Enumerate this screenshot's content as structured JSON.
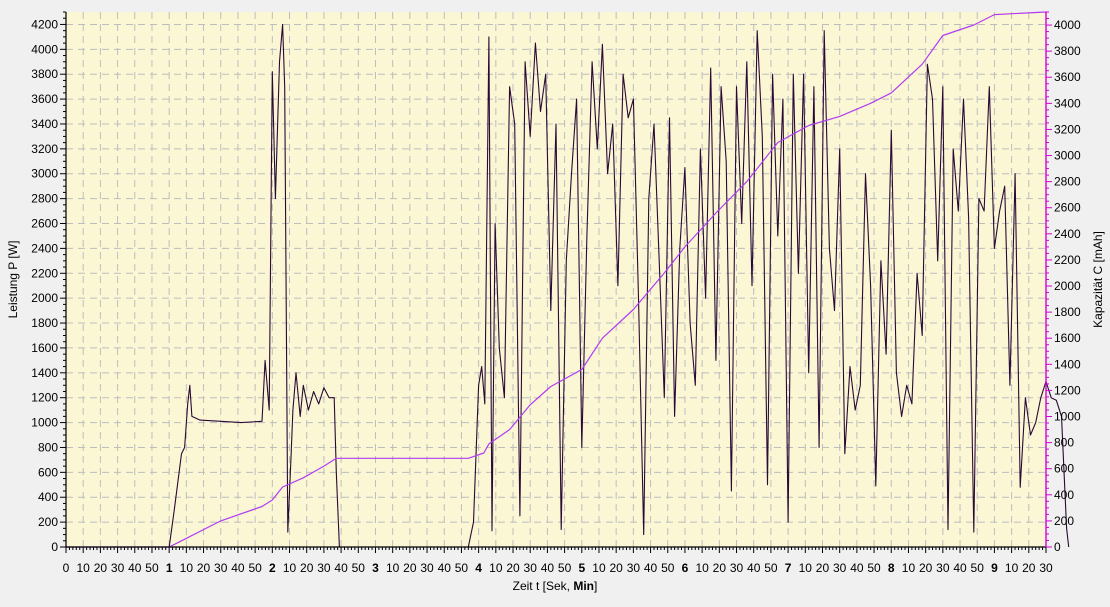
{
  "chart_data": {
    "type": "line",
    "xlabel": "Zeit t [Sek, Min]",
    "xlabel_parts": [
      "Zeit  t  [Sek, ",
      "Min",
      "]"
    ],
    "ylabel_left": "Leistung  P  [W]",
    "ylabel_right": "Kapazität  C  [mAh]",
    "xlim": [
      0,
      9.5
    ],
    "ylim_left": [
      0,
      4300
    ],
    "ylim_right": [
      0,
      4100
    ],
    "grid": true,
    "left_ticks": [
      0,
      200,
      400,
      600,
      800,
      1000,
      1200,
      1400,
      1600,
      1800,
      2000,
      2200,
      2400,
      2600,
      2800,
      3000,
      3200,
      3400,
      3600,
      3800,
      4000,
      4200
    ],
    "right_ticks": [
      0,
      200,
      400,
      600,
      800,
      1000,
      1200,
      1400,
      1600,
      1800,
      2000,
      2200,
      2400,
      2600,
      2800,
      3000,
      3200,
      3400,
      3600,
      3800,
      4000
    ],
    "x_tick_labels": [
      "0",
      "10",
      "20",
      "30",
      "40",
      "50",
      "1",
      "10",
      "20",
      "30",
      "40",
      "50",
      "2",
      "10",
      "20",
      "30",
      "40",
      "50",
      "3",
      "10",
      "20",
      "30",
      "40",
      "50",
      "4",
      "10",
      "20",
      "30",
      "40",
      "50",
      "5",
      "10",
      "20",
      "30",
      "40",
      "50",
      "6",
      "10",
      "20",
      "30",
      "40",
      "50",
      "7",
      "10",
      "20",
      "30",
      "40",
      "50",
      "8",
      "10",
      "20",
      "30",
      "40",
      "50",
      "9",
      "10",
      "20",
      "30"
    ],
    "colors": {
      "power": "#2a0a35",
      "capacity": "#b23cf2",
      "background": "#fbf7d5",
      "grid": "#bdbdbd",
      "axis_right": "#d400d4"
    },
    "series": [
      {
        "axis": "left",
        "values": [
          [
            0,
            0
          ],
          [
            0.9,
            0
          ],
          [
            1.0,
            0
          ],
          [
            1.05,
            300
          ],
          [
            1.12,
            750
          ],
          [
            1.15,
            800
          ],
          [
            1.18,
            1150
          ],
          [
            1.2,
            1300
          ],
          [
            1.22,
            1050
          ],
          [
            1.3,
            1020
          ],
          [
            1.5,
            1010
          ],
          [
            1.7,
            1000
          ],
          [
            1.9,
            1010
          ],
          [
            1.93,
            1500
          ],
          [
            1.97,
            1100
          ],
          [
            2.0,
            3820
          ],
          [
            2.03,
            2800
          ],
          [
            2.07,
            3900
          ],
          [
            2.1,
            4200
          ],
          [
            2.12,
            3700
          ],
          [
            2.15,
            120
          ],
          [
            2.18,
            700
          ],
          [
            2.2,
            1100
          ],
          [
            2.23,
            1400
          ],
          [
            2.27,
            1050
          ],
          [
            2.3,
            1300
          ],
          [
            2.35,
            1100
          ],
          [
            2.4,
            1250
          ],
          [
            2.45,
            1150
          ],
          [
            2.5,
            1280
          ],
          [
            2.55,
            1200
          ],
          [
            2.6,
            1200
          ],
          [
            2.62,
            600
          ],
          [
            2.65,
            0
          ],
          [
            3.0,
            0
          ],
          [
            3.5,
            0
          ],
          [
            3.9,
            0
          ],
          [
            3.95,
            200
          ],
          [
            4.0,
            1300
          ],
          [
            4.03,
            1450
          ],
          [
            4.06,
            1150
          ],
          [
            4.1,
            4100
          ],
          [
            4.13,
            130
          ],
          [
            4.16,
            2600
          ],
          [
            4.2,
            1600
          ],
          [
            4.25,
            1200
          ],
          [
            4.3,
            3700
          ],
          [
            4.35,
            3400
          ],
          [
            4.4,
            250
          ],
          [
            4.45,
            3900
          ],
          [
            4.5,
            3300
          ],
          [
            4.55,
            4050
          ],
          [
            4.6,
            3500
          ],
          [
            4.65,
            3800
          ],
          [
            4.7,
            1900
          ],
          [
            4.75,
            3400
          ],
          [
            4.8,
            140
          ],
          [
            4.85,
            2300
          ],
          [
            4.9,
            3000
          ],
          [
            4.95,
            3600
          ],
          [
            5.0,
            800
          ],
          [
            5.05,
            2500
          ],
          [
            5.1,
            3900
          ],
          [
            5.15,
            3200
          ],
          [
            5.2,
            4040
          ],
          [
            5.25,
            3000
          ],
          [
            5.3,
            3400
          ],
          [
            5.35,
            2100
          ],
          [
            5.4,
            3800
          ],
          [
            5.45,
            3450
          ],
          [
            5.5,
            3600
          ],
          [
            5.55,
            2000
          ],
          [
            5.6,
            100
          ],
          [
            5.65,
            2800
          ],
          [
            5.7,
            3400
          ],
          [
            5.75,
            2300
          ],
          [
            5.8,
            1200
          ],
          [
            5.85,
            3450
          ],
          [
            5.9,
            1050
          ],
          [
            5.95,
            2400
          ],
          [
            6.0,
            3050
          ],
          [
            6.05,
            1800
          ],
          [
            6.1,
            1300
          ],
          [
            6.15,
            3200
          ],
          [
            6.2,
            2000
          ],
          [
            6.25,
            3850
          ],
          [
            6.3,
            1500
          ],
          [
            6.35,
            3700
          ],
          [
            6.4,
            3100
          ],
          [
            6.45,
            450
          ],
          [
            6.5,
            3700
          ],
          [
            6.55,
            2600
          ],
          [
            6.6,
            3900
          ],
          [
            6.65,
            2100
          ],
          [
            6.7,
            4150
          ],
          [
            6.75,
            3300
          ],
          [
            6.8,
            500
          ],
          [
            6.85,
            3800
          ],
          [
            6.9,
            2500
          ],
          [
            6.95,
            3600
          ],
          [
            7.0,
            200
          ],
          [
            7.05,
            3800
          ],
          [
            7.1,
            2200
          ],
          [
            7.15,
            3800
          ],
          [
            7.2,
            1400
          ],
          [
            7.25,
            3700
          ],
          [
            7.3,
            800
          ],
          [
            7.35,
            4150
          ],
          [
            7.4,
            2400
          ],
          [
            7.45,
            1900
          ],
          [
            7.5,
            3200
          ],
          [
            7.55,
            750
          ],
          [
            7.6,
            1450
          ],
          [
            7.65,
            1100
          ],
          [
            7.7,
            1300
          ],
          [
            7.75,
            3000
          ],
          [
            7.8,
            2100
          ],
          [
            7.85,
            490
          ],
          [
            7.9,
            2300
          ],
          [
            7.95,
            1550
          ],
          [
            8.0,
            3350
          ],
          [
            8.05,
            1400
          ],
          [
            8.1,
            1050
          ],
          [
            8.15,
            1300
          ],
          [
            8.2,
            1150
          ],
          [
            8.25,
            2200
          ],
          [
            8.3,
            1700
          ],
          [
            8.35,
            3880
          ],
          [
            8.4,
            3600
          ],
          [
            8.45,
            2300
          ],
          [
            8.5,
            3700
          ],
          [
            8.55,
            140
          ],
          [
            8.6,
            3200
          ],
          [
            8.65,
            2700
          ],
          [
            8.7,
            3600
          ],
          [
            8.75,
            2650
          ],
          [
            8.8,
            120
          ],
          [
            8.85,
            2800
          ],
          [
            8.9,
            2700
          ],
          [
            8.95,
            3700
          ],
          [
            9.0,
            2400
          ],
          [
            9.05,
            2700
          ],
          [
            9.1,
            2900
          ],
          [
            9.15,
            1300
          ],
          [
            9.2,
            3000
          ],
          [
            9.25,
            480
          ],
          [
            9.3,
            1200
          ],
          [
            9.35,
            900
          ],
          [
            9.4,
            1000
          ],
          [
            9.45,
            1200
          ],
          [
            9.5,
            1330
          ],
          [
            9.55,
            1200
          ],
          [
            9.6,
            1180
          ],
          [
            9.65,
            1050
          ],
          [
            9.7,
            150
          ],
          [
            9.72,
            0
          ]
        ]
      },
      {
        "axis": "right",
        "values": [
          [
            0,
            0
          ],
          [
            1.0,
            0
          ],
          [
            1.1,
            40
          ],
          [
            1.5,
            200
          ],
          [
            1.9,
            310
          ],
          [
            2.0,
            360
          ],
          [
            2.1,
            460
          ],
          [
            2.3,
            530
          ],
          [
            2.5,
            620
          ],
          [
            2.62,
            680
          ],
          [
            3.0,
            680
          ],
          [
            3.9,
            680
          ],
          [
            4.05,
            720
          ],
          [
            4.1,
            790
          ],
          [
            4.3,
            900
          ],
          [
            4.5,
            1090
          ],
          [
            4.7,
            1230
          ],
          [
            5.0,
            1360
          ],
          [
            5.2,
            1600
          ],
          [
            5.5,
            1820
          ],
          [
            5.8,
            2100
          ],
          [
            6.0,
            2300
          ],
          [
            6.3,
            2560
          ],
          [
            6.6,
            2800
          ],
          [
            6.9,
            3100
          ],
          [
            7.2,
            3230
          ],
          [
            7.5,
            3300
          ],
          [
            7.8,
            3400
          ],
          [
            8.0,
            3480
          ],
          [
            8.3,
            3700
          ],
          [
            8.5,
            3920
          ],
          [
            8.8,
            4000
          ],
          [
            9.0,
            4080
          ],
          [
            9.5,
            4100
          ]
        ]
      }
    ]
  }
}
